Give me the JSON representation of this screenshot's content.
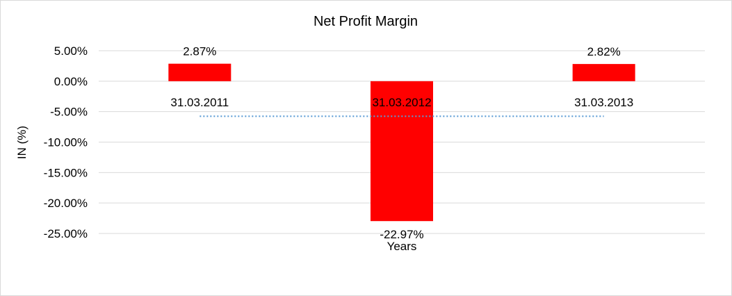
{
  "chart_data": {
    "type": "bar",
    "title": "Net Profit Margin",
    "xlabel": "Years",
    "ylabel": "IN (%)",
    "categories": [
      "31.03.2011",
      "31.03.2012",
      "31.03.2013"
    ],
    "values": [
      2.87,
      -22.97,
      2.82
    ],
    "data_labels": [
      "2.87%",
      "-22.97%",
      "2.82%"
    ],
    "ylim": [
      -25,
      5
    ],
    "yticks": [
      5,
      0,
      -5,
      -10,
      -15,
      -20,
      -25
    ],
    "ytick_labels": [
      "5.00%",
      "0.00%",
      "-5.00%",
      "-10.00%",
      "-15.00%",
      "-20.00%",
      "-25.00%"
    ],
    "trendline_value": -5.76,
    "grid": true,
    "legend": "none",
    "colors": {
      "bar": "#ff0000",
      "grid": "#d9d9d9",
      "trendline": "#5b9bd5"
    }
  }
}
